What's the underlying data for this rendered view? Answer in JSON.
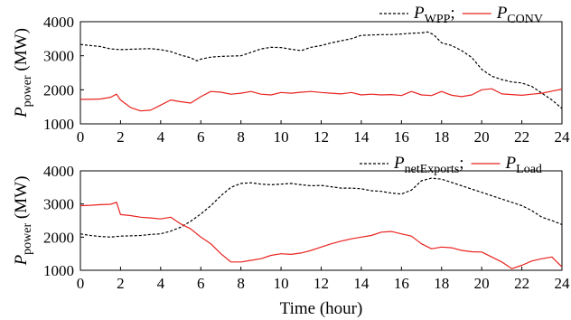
{
  "chart_data": [
    {
      "type": "line",
      "x_ticks": [
        0,
        2,
        4,
        6,
        8,
        10,
        12,
        14,
        16,
        18,
        20,
        22,
        24
      ],
      "xlim": [
        0,
        24
      ],
      "ylim": [
        1000,
        4000
      ],
      "y_ticks": [
        1000,
        2000,
        3000,
        4000
      ],
      "ylabel": {
        "main": "P",
        "sub": "power",
        "unit": " (MW)"
      },
      "legend_position": "top-right",
      "grid": false,
      "series": [
        {
          "name": {
            "main": "P",
            "sub": "WPP",
            "sep": ";"
          },
          "color": "#000000",
          "dash": "dashed",
          "x": [
            0,
            0.5,
            1,
            1.5,
            2,
            2.5,
            3,
            3.5,
            4,
            4.5,
            5,
            5.5,
            5.8,
            6,
            6.5,
            7,
            7.5,
            8,
            8.5,
            9,
            9.5,
            10,
            10.5,
            11,
            11.5,
            12,
            12.5,
            13,
            13.5,
            14,
            14.5,
            15,
            15.5,
            16,
            16.5,
            17,
            17.3,
            17.6,
            18,
            18.5,
            19,
            19.5,
            20,
            20.5,
            21,
            21.5,
            22,
            22.5,
            23,
            23.5,
            24
          ],
          "y": [
            3330,
            3300,
            3270,
            3200,
            3180,
            3190,
            3200,
            3210,
            3180,
            3120,
            3020,
            2940,
            2850,
            2900,
            2960,
            2980,
            2990,
            3000,
            3100,
            3200,
            3250,
            3240,
            3190,
            3150,
            3250,
            3300,
            3380,
            3440,
            3500,
            3600,
            3610,
            3620,
            3620,
            3640,
            3660,
            3670,
            3700,
            3620,
            3380,
            3300,
            3150,
            2950,
            2600,
            2400,
            2300,
            2230,
            2200,
            2100,
            1900,
            1700,
            1450
          ]
        },
        {
          "name": {
            "main": "P",
            "sub": "CONV",
            "sep": ""
          },
          "color": "#e8231f",
          "dash": "solid",
          "x": [
            0,
            0.5,
            1,
            1.5,
            1.8,
            2,
            2.5,
            3,
            3.5,
            4,
            4.5,
            5,
            5.5,
            6,
            6.5,
            7,
            7.5,
            8,
            8.5,
            9,
            9.5,
            10,
            10.5,
            11,
            11.5,
            12,
            12.5,
            13,
            13.5,
            14,
            14.5,
            15,
            15.5,
            16,
            16.5,
            17,
            17.5,
            18,
            18.5,
            19,
            19.5,
            20,
            20.5,
            21,
            21.5,
            22,
            22.5,
            23,
            23.5,
            24
          ],
          "y": [
            1720,
            1720,
            1730,
            1780,
            1870,
            1700,
            1480,
            1380,
            1400,
            1550,
            1700,
            1650,
            1610,
            1800,
            1950,
            1930,
            1870,
            1900,
            1950,
            1870,
            1850,
            1920,
            1900,
            1930,
            1950,
            1920,
            1900,
            1880,
            1920,
            1850,
            1870,
            1850,
            1860,
            1830,
            1950,
            1850,
            1830,
            1950,
            1840,
            1800,
            1850,
            2000,
            2030,
            1880,
            1860,
            1840,
            1870,
            1900,
            1960,
            2020
          ]
        }
      ]
    },
    {
      "type": "line",
      "x_ticks": [
        0,
        2,
        4,
        6,
        8,
        10,
        12,
        14,
        16,
        18,
        20,
        22,
        24
      ],
      "xlim": [
        0,
        24
      ],
      "ylim": [
        1000,
        4000
      ],
      "y_ticks": [
        1000,
        2000,
        3000,
        4000
      ],
      "xlabel": "Time (hour)",
      "ylabel": {
        "main": "P",
        "sub": "power",
        "unit": " (MW)"
      },
      "legend_position": "top-right",
      "grid": false,
      "series": [
        {
          "name": {
            "main": "P",
            "sub": "netExports",
            "sep": ";"
          },
          "color": "#000000",
          "dash": "dashed",
          "x": [
            0,
            0.5,
            1,
            1.5,
            2,
            2.5,
            3,
            3.5,
            4,
            4.5,
            5,
            5.5,
            6,
            6.5,
            7,
            7.5,
            8,
            8.5,
            9,
            9.5,
            10,
            10.5,
            11,
            11.5,
            12,
            12.5,
            13,
            13.5,
            14,
            14.5,
            15,
            15.5,
            16,
            16.5,
            17,
            17.5,
            18,
            18.5,
            19,
            19.5,
            20,
            20.5,
            21,
            21.5,
            22,
            22.5,
            23,
            23.5,
            24
          ],
          "y": [
            2100,
            2050,
            2020,
            2000,
            2030,
            2040,
            2050,
            2080,
            2100,
            2180,
            2300,
            2480,
            2700,
            2950,
            3250,
            3500,
            3620,
            3640,
            3600,
            3580,
            3600,
            3620,
            3580,
            3550,
            3560,
            3520,
            3480,
            3480,
            3460,
            3400,
            3380,
            3330,
            3300,
            3420,
            3700,
            3780,
            3750,
            3650,
            3550,
            3450,
            3350,
            3250,
            3150,
            3050,
            2950,
            2800,
            2600,
            2500,
            2380
          ]
        },
        {
          "name": {
            "main": "P",
            "sub": "Load",
            "sep": ""
          },
          "color": "#e8231f",
          "dash": "solid",
          "x": [
            0,
            0.5,
            1,
            1.5,
            1.8,
            2,
            2.5,
            3,
            3.5,
            4,
            4.5,
            5,
            5.5,
            6,
            6.5,
            7,
            7.5,
            8,
            8.5,
            9,
            9.5,
            10,
            10.5,
            11,
            11.5,
            12,
            12.5,
            13,
            13.5,
            14,
            14.5,
            15,
            15.5,
            16,
            16.5,
            17,
            17.5,
            18,
            18.5,
            19,
            19.5,
            20,
            20.5,
            21,
            21.5,
            22,
            22.5,
            23,
            23.5,
            24
          ],
          "y": [
            2950,
            2960,
            2980,
            2990,
            3050,
            2680,
            2650,
            2600,
            2580,
            2550,
            2600,
            2400,
            2250,
            2000,
            1800,
            1500,
            1250,
            1250,
            1300,
            1350,
            1450,
            1500,
            1480,
            1520,
            1600,
            1700,
            1800,
            1880,
            1950,
            2000,
            2050,
            2150,
            2170,
            2100,
            2030,
            1800,
            1650,
            1700,
            1680,
            1600,
            1560,
            1550,
            1400,
            1250,
            1050,
            1150,
            1280,
            1350,
            1400,
            1100
          ]
        }
      ]
    }
  ]
}
